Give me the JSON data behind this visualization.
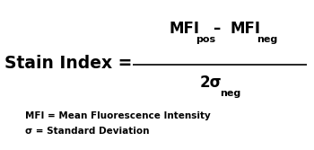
{
  "bg_color": "#ffffff",
  "text_color": "#000000",
  "stain_index_label": "Stain Index =",
  "footnote1": "MFI = Mean Fluorescence Intensity",
  "footnote2": "σ = Standard Deviation",
  "fig_width": 3.5,
  "fig_height": 1.67,
  "dpi": 100
}
